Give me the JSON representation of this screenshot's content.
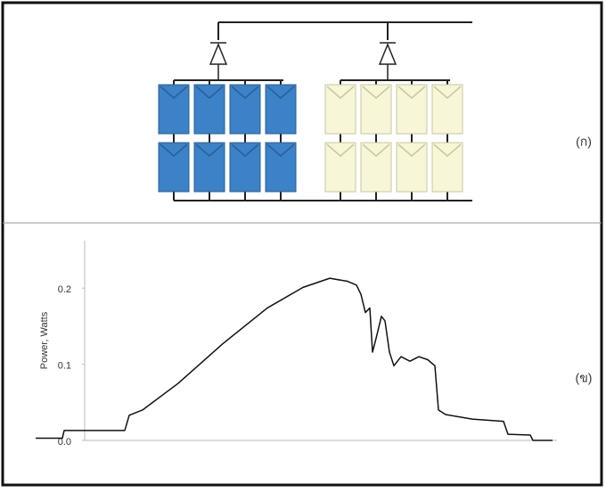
{
  "panel_labels": [
    "(ก)",
    "(ข)"
  ],
  "chart_data": {
    "type": "line",
    "y_label": "Power, Watts",
    "x": [
      0,
      30,
      32,
      100,
      105,
      120,
      160,
      210,
      260,
      300,
      330,
      350,
      360,
      365,
      370,
      375,
      378,
      382,
      388,
      392,
      397,
      402,
      410,
      420,
      430,
      440,
      448,
      452,
      460,
      490,
      525,
      530,
      555,
      558,
      580
    ],
    "series": [
      {
        "color": "#111111",
        "values": [
          0.003,
          0.003,
          0.013,
          0.013,
          0.033,
          0.04,
          0.075,
          0.127,
          0.174,
          0.201,
          0.213,
          0.209,
          0.204,
          0.192,
          0.168,
          0.174,
          0.116,
          0.134,
          0.163,
          0.157,
          0.116,
          0.098,
          0.11,
          0.104,
          0.11,
          0.106,
          0.098,
          0.04,
          0.034,
          0.028,
          0.025,
          0.008,
          0.007,
          0.0,
          0.0
        ]
      }
    ],
    "xlim": [
      0,
      580
    ],
    "ylim": [
      0,
      0.26
    ],
    "yticks": [
      {
        "value": 0,
        "label": "0.0"
      },
      0.1,
      0.2
    ]
  }
}
